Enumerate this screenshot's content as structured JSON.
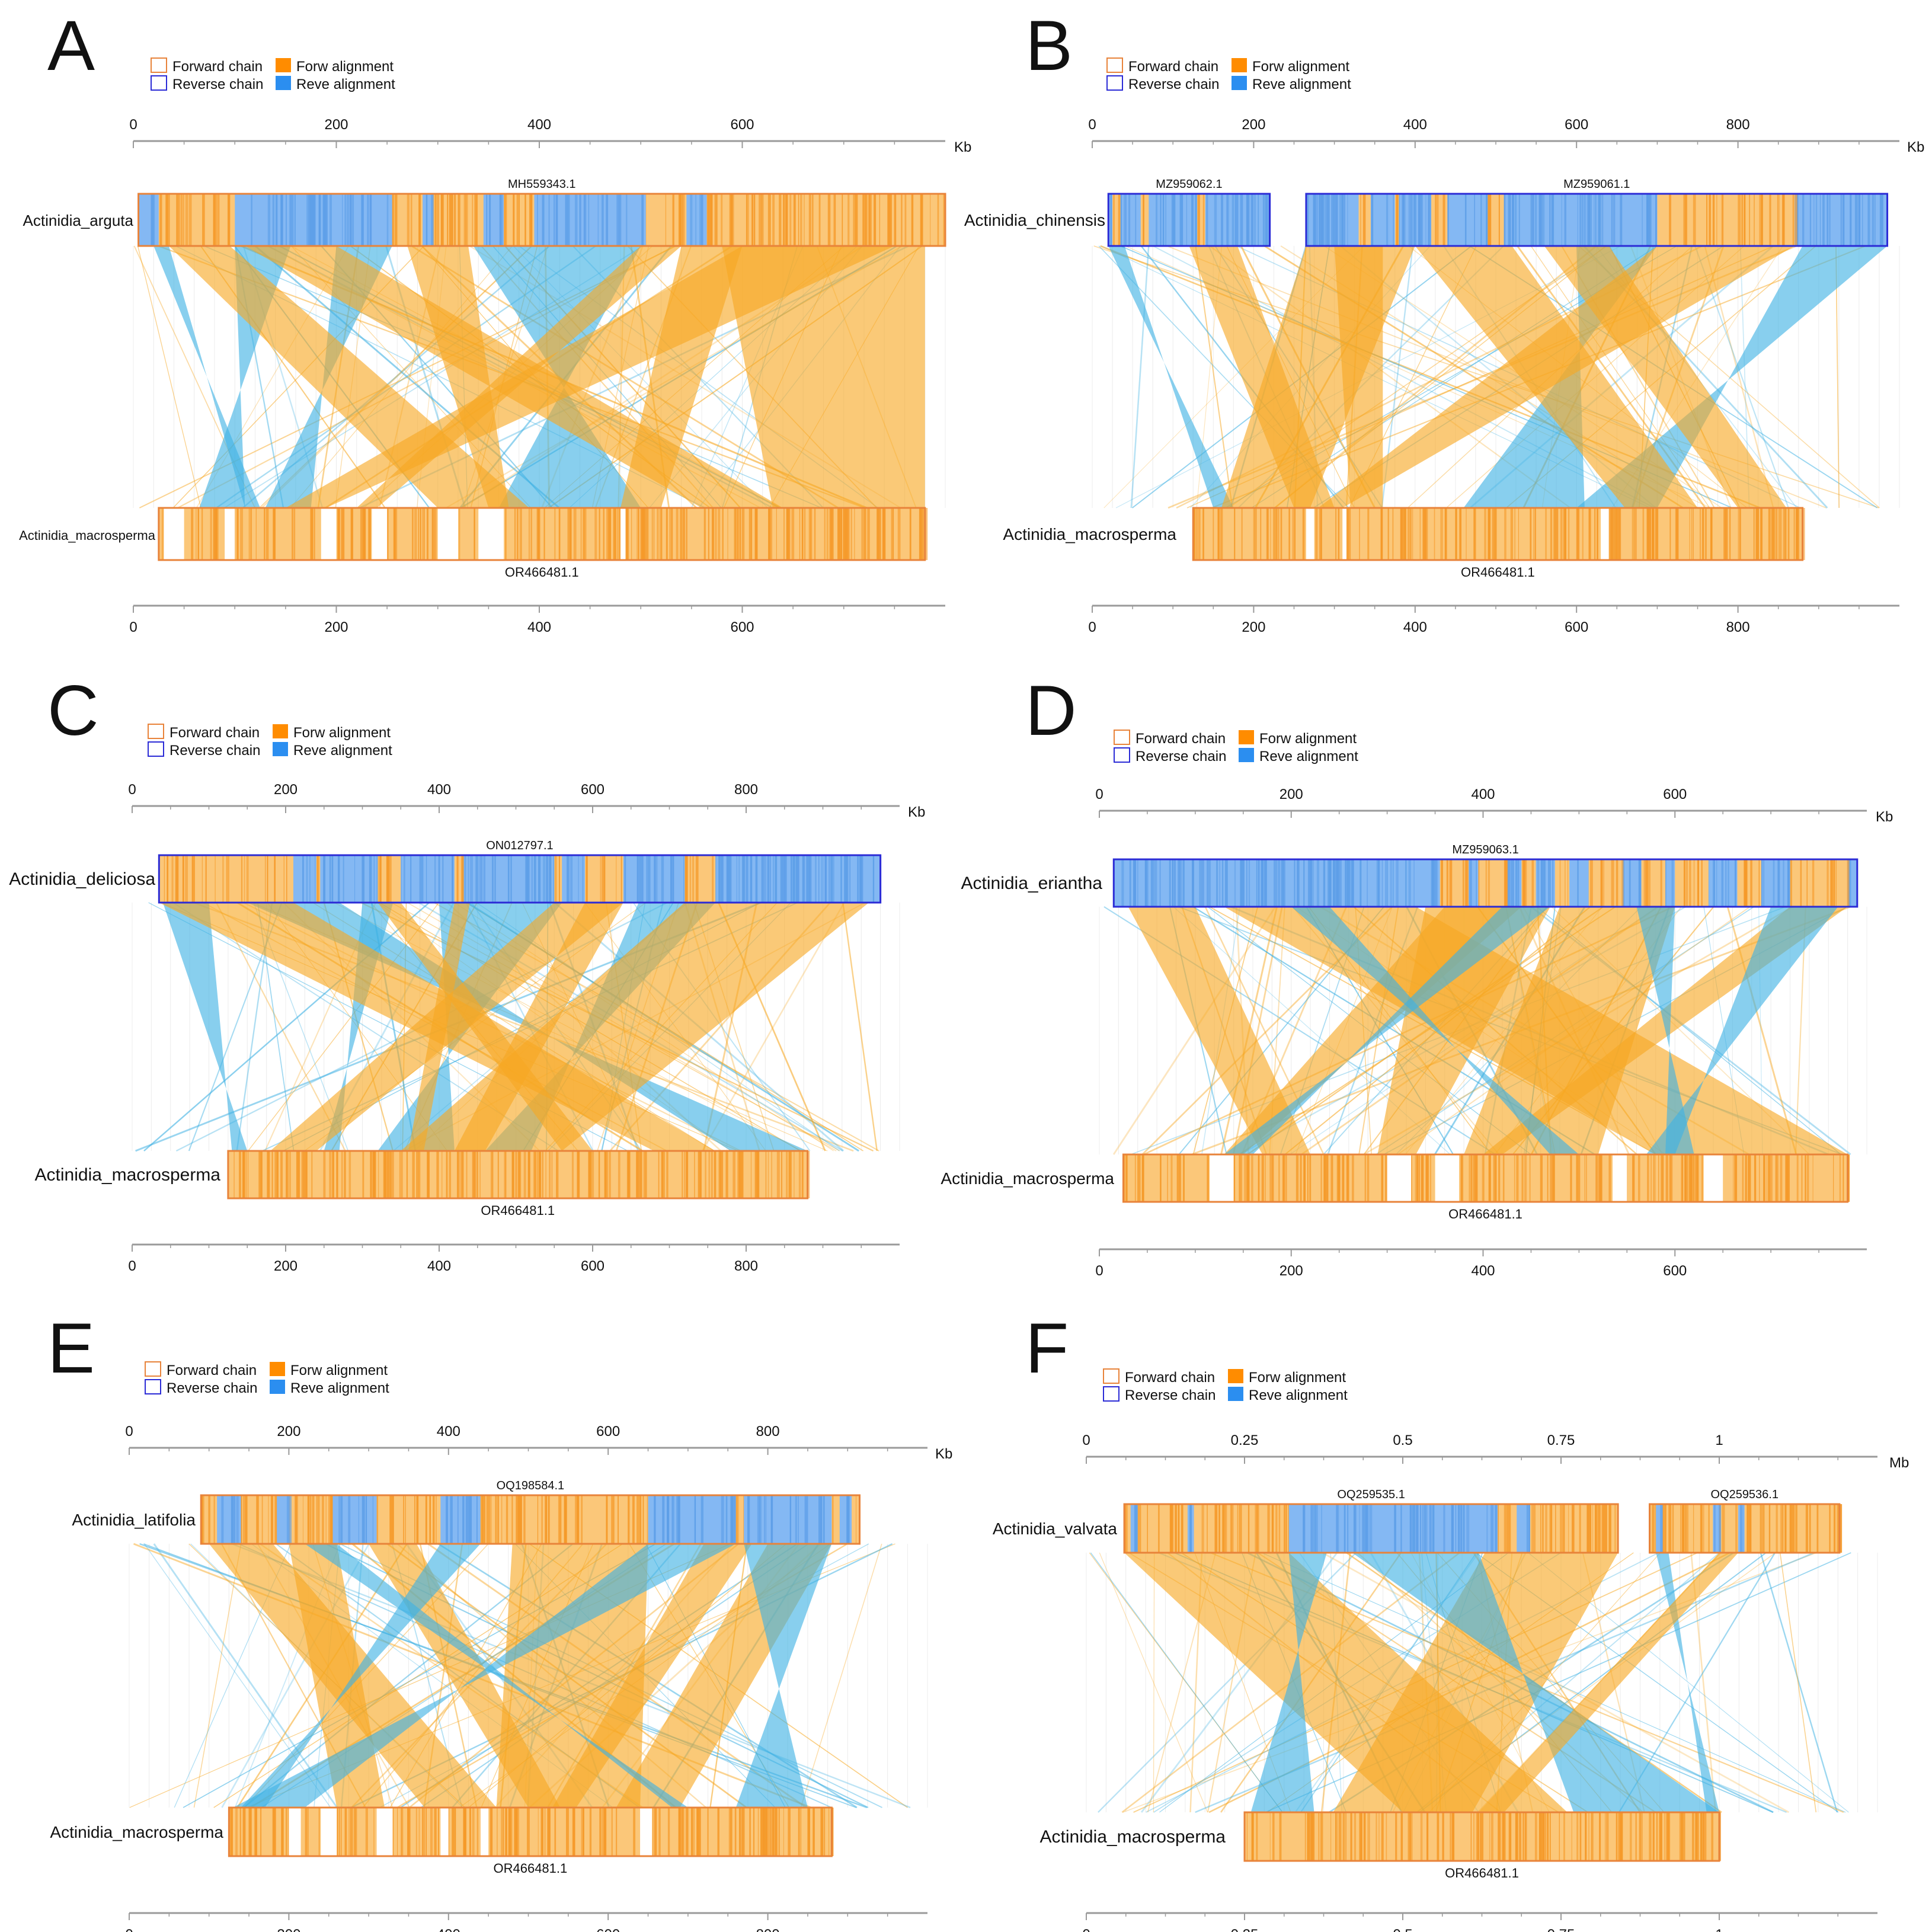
{
  "colors": {
    "forward": "#f7a823",
    "forward_light": "#fbc779",
    "reverse": "#3fb1e3",
    "reverse_fill": "#84b8f3",
    "chain_forward_border": "#e8833a",
    "chain_reverse_border": "#2b2bd6",
    "axis": "#9a9a9a",
    "text": "#111111"
  },
  "legend": {
    "forward_chain": "Forward chain",
    "reverse_chain": "Reverse chain",
    "forw_alignment": "Forw alignment",
    "reve_alignment": "Reve alignment"
  },
  "chart_data": [
    {
      "type": "synteny",
      "panel": "A",
      "unit": "Kb",
      "axis_max": 800,
      "ticks": [
        0,
        200,
        400,
        600
      ],
      "top_species": "Actinidia_arguta",
      "top_chains": [
        {
          "id": "MH559343.1",
          "start": 5,
          "end": 800,
          "strand": "forward",
          "rev_blocks": [
            [
              5,
              25
            ],
            [
              100,
              255
            ],
            [
              285,
              295
            ],
            [
              345,
              365
            ],
            [
              395,
              505
            ],
            [
              545,
              565
            ]
          ]
        }
      ],
      "bottom_species": "Actinidia_macrosperma",
      "bottom_chains": [
        {
          "id": "OR466481.1",
          "start": 25,
          "end": 780,
          "strand": "forward",
          "gaps": [
            [
              30,
              50
            ],
            [
              90,
              100
            ],
            [
              185,
              200
            ],
            [
              235,
              250
            ],
            [
              300,
              320
            ],
            [
              340,
              365
            ],
            [
              480,
              485
            ]
          ]
        }
      ],
      "bands": [
        {
          "s": "r",
          "t": [
            20,
            35
          ],
          "b": [
            110,
            125
          ]
        },
        {
          "s": "r",
          "t": [
            100,
            155
          ],
          "b": [
            65,
            110
          ]
        },
        {
          "s": "r",
          "t": [
            200,
            255
          ],
          "b": [
            130,
            175
          ]
        },
        {
          "s": "r",
          "t": [
            335,
            500
          ],
          "b": [
            360,
            500
          ]
        },
        {
          "s": "f",
          "t": [
            35,
            95
          ],
          "b": [
            300,
            390
          ]
        },
        {
          "s": "f",
          "t": [
            110,
            200
          ],
          "b": [
            560,
            640
          ]
        },
        {
          "s": "f",
          "t": [
            270,
            330
          ],
          "b": [
            350,
            370
          ]
        },
        {
          "s": "f",
          "t": [
            540,
            600
          ],
          "b": [
            480,
            520
          ]
        },
        {
          "s": "f",
          "t": [
            580,
            780
          ],
          "b": [
            630,
            780
          ]
        },
        {
          "s": "f",
          "t": [
            600,
            750
          ],
          "b": [
            150,
            190
          ]
        },
        {
          "s": "f",
          "t": [
            500,
            540
          ],
          "b": [
            220,
            240
          ]
        }
      ]
    },
    {
      "type": "synteny",
      "panel": "B",
      "unit": "Kb",
      "axis_max": 1000,
      "ticks": [
        0,
        200,
        400,
        600,
        800
      ],
      "top_species": "Actinidia_chinensis",
      "top_chains": [
        {
          "id": "MZ959062.1",
          "start": 20,
          "end": 220,
          "strand": "reverse",
          "fwd_blocks": [
            [
              25,
              35
            ],
            [
              60,
              70
            ],
            [
              130,
              140
            ]
          ]
        },
        {
          "id": "MZ959061.1",
          "start": 265,
          "end": 985,
          "strand": "reverse",
          "fwd_blocks": [
            [
              330,
              345
            ],
            [
              375,
              380
            ],
            [
              420,
              440
            ],
            [
              490,
              510
            ],
            [
              700,
              870
            ]
          ]
        }
      ],
      "bottom_species": "Actinidia_macrosperma",
      "bottom_chains": [
        {
          "id": "OR466481.1",
          "start": 125,
          "end": 880,
          "strand": "forward",
          "gaps": [
            [
              265,
              275
            ],
            [
              310,
              315
            ],
            [
              630,
              640
            ]
          ]
        }
      ],
      "bands": [
        {
          "s": "r",
          "t": [
            20,
            40
          ],
          "b": [
            150,
            175
          ]
        },
        {
          "s": "r",
          "t": [
            600,
            700
          ],
          "b": [
            460,
            610
          ]
        },
        {
          "s": "r",
          "t": [
            880,
            985
          ],
          "b": [
            600,
            700
          ]
        },
        {
          "s": "f",
          "t": [
            265,
            400
          ],
          "b": [
            160,
            270
          ]
        },
        {
          "s": "f",
          "t": [
            400,
            520
          ],
          "b": [
            660,
            750
          ]
        },
        {
          "s": "f",
          "t": [
            700,
            870
          ],
          "b": [
            280,
            310
          ]
        },
        {
          "s": "f",
          "t": [
            560,
            640
          ],
          "b": [
            800,
            860
          ]
        },
        {
          "s": "f",
          "t": [
            300,
            360
          ],
          "b": [
            320,
            360
          ]
        },
        {
          "s": "f",
          "t": [
            120,
            180
          ],
          "b": [
            250,
            300
          ]
        }
      ]
    },
    {
      "type": "synteny",
      "panel": "C",
      "unit": "Kb",
      "axis_max": 1000,
      "ticks": [
        0,
        200,
        400,
        600,
        800
      ],
      "top_species": "Actinidia_deliciosa",
      "top_chains": [
        {
          "id": "ON012797.1",
          "start": 35,
          "end": 975,
          "strand": "reverse",
          "fwd_blocks": [
            [
              35,
              210
            ],
            [
              240,
              245
            ],
            [
              320,
              350
            ],
            [
              420,
              430
            ],
            [
              550,
              560
            ],
            [
              590,
              640
            ],
            [
              720,
              760
            ]
          ]
        }
      ],
      "bottom_species": "Actinidia_macrosperma",
      "bottom_chains": [
        {
          "id": "OR466481.1",
          "start": 125,
          "end": 880,
          "strand": "forward",
          "gaps": []
        }
      ],
      "bands": [
        {
          "s": "r",
          "t": [
            40,
            100
          ],
          "b": [
            130,
            150
          ]
        },
        {
          "s": "r",
          "t": [
            150,
            270
          ],
          "b": [
            780,
            880
          ]
        },
        {
          "s": "r",
          "t": [
            300,
            340
          ],
          "b": [
            250,
            270
          ]
        },
        {
          "s": "r",
          "t": [
            400,
            560
          ],
          "b": [
            320,
            420
          ]
        },
        {
          "s": "r",
          "t": [
            660,
            760
          ],
          "b": [
            460,
            520
          ]
        },
        {
          "s": "f",
          "t": [
            35,
            210
          ],
          "b": [
            680,
            760
          ]
        },
        {
          "s": "f",
          "t": [
            720,
            960
          ],
          "b": [
            350,
            560
          ]
        },
        {
          "s": "f",
          "t": [
            320,
            350
          ],
          "b": [
            560,
            600
          ]
        },
        {
          "s": "f",
          "t": [
            420,
            440
          ],
          "b": [
            360,
            380
          ]
        },
        {
          "s": "f",
          "t": [
            550,
            640
          ],
          "b": [
            180,
            240
          ]
        },
        {
          "s": "f",
          "t": [
            590,
            640
          ],
          "b": [
            420,
            460
          ]
        }
      ]
    },
    {
      "type": "synteny",
      "panel": "D",
      "unit": "Kb",
      "axis_max": 800,
      "ticks": [
        0,
        200,
        400,
        600
      ],
      "top_species": "Actinidia_eriantha",
      "top_chains": [
        {
          "id": "MZ959063.1",
          "start": 15,
          "end": 790,
          "strand": "reverse",
          "fwd_blocks": [
            [
              355,
              385
            ],
            [
              395,
              425
            ],
            [
              440,
              455
            ],
            [
              475,
              490
            ],
            [
              510,
              545
            ],
            [
              565,
              590
            ],
            [
              600,
              635
            ],
            [
              665,
              690
            ],
            [
              720,
              780
            ]
          ]
        }
      ],
      "bottom_species": "Actinidia_macrosperma",
      "bottom_chains": [
        {
          "id": "OR466481.1",
          "start": 25,
          "end": 780,
          "strand": "forward",
          "gaps": [
            [
              115,
              140
            ],
            [
              300,
              325
            ],
            [
              350,
              375
            ],
            [
              535,
              550
            ],
            [
              630,
              650
            ]
          ]
        }
      ],
      "bands": [
        {
          "s": "f",
          "t": [
            30,
            100
          ],
          "b": [
            170,
            220
          ]
        },
        {
          "s": "f",
          "t": [
            130,
            330
          ],
          "b": [
            580,
            780
          ]
        },
        {
          "s": "f",
          "t": [
            340,
            470
          ],
          "b": [
            290,
            330
          ]
        },
        {
          "s": "f",
          "t": [
            480,
            600
          ],
          "b": [
            380,
            520
          ]
        },
        {
          "s": "f",
          "t": [
            360,
            440
          ],
          "b": [
            130,
            150
          ]
        },
        {
          "s": "f",
          "t": [
            720,
            780
          ],
          "b": [
            400,
            420
          ]
        },
        {
          "s": "r",
          "t": [
            560,
            600
          ],
          "b": [
            590,
            620
          ]
        },
        {
          "s": "r",
          "t": [
            700,
            770
          ],
          "b": [
            570,
            600
          ]
        },
        {
          "s": "r",
          "t": [
            420,
            470
          ],
          "b": [
            130,
            160
          ]
        },
        {
          "s": "r",
          "t": [
            200,
            240
          ],
          "b": [
            470,
            500
          ]
        }
      ]
    },
    {
      "type": "synteny",
      "panel": "E",
      "unit": "Kb",
      "axis_max": 1000,
      "ticks": [
        0,
        200,
        400,
        600,
        800
      ],
      "top_species": "Actinidia_latifolia",
      "top_chains": [
        {
          "id": "OQ198584.1",
          "start": 90,
          "end": 915,
          "strand": "forward",
          "rev_blocks": [
            [
              110,
              140
            ],
            [
              185,
              200
            ],
            [
              255,
              310
            ],
            [
              390,
              440
            ],
            [
              650,
              760
            ],
            [
              770,
              880
            ],
            [
              890,
              905
            ]
          ]
        }
      ],
      "bottom_species": "Actinidia_macrosperma",
      "bottom_chains": [
        {
          "id": "OR466481.1",
          "start": 125,
          "end": 880,
          "strand": "forward",
          "gaps": [
            [
              200,
              215
            ],
            [
              240,
              260
            ],
            [
              310,
              330
            ],
            [
              390,
              400
            ],
            [
              440,
              450
            ],
            [
              640,
              655
            ]
          ]
        }
      ],
      "bands": [
        {
          "s": "f",
          "t": [
            100,
            180
          ],
          "b": [
            370,
            460
          ]
        },
        {
          "s": "f",
          "t": [
            200,
            260
          ],
          "b": [
            260,
            320
          ]
        },
        {
          "s": "f",
          "t": [
            300,
            360
          ],
          "b": [
            500,
            540
          ]
        },
        {
          "s": "f",
          "t": [
            480,
            650
          ],
          "b": [
            460,
            640
          ]
        },
        {
          "s": "f",
          "t": [
            720,
            780
          ],
          "b": [
            530,
            560
          ]
        },
        {
          "s": "f",
          "t": [
            800,
            880
          ],
          "b": [
            610,
            690
          ]
        },
        {
          "s": "r",
          "t": [
            650,
            760
          ],
          "b": [
            130,
            220
          ]
        },
        {
          "s": "r",
          "t": [
            770,
            880
          ],
          "b": [
            760,
            850
          ]
        },
        {
          "s": "r",
          "t": [
            390,
            440
          ],
          "b": [
            140,
            170
          ]
        },
        {
          "s": "r",
          "t": [
            220,
            260
          ],
          "b": [
            680,
            700
          ]
        }
      ]
    },
    {
      "type": "synteny",
      "panel": "F",
      "unit": "Mb",
      "axis_max": 1.25,
      "ticks": [
        0,
        0.25,
        0.5,
        0.75,
        1
      ],
      "tick_labels": [
        "0",
        "0.25",
        "0.5",
        "0.75",
        "1"
      ],
      "top_species": "Actinidia_valvata",
      "top_chains": [
        {
          "id": "OQ259535.1",
          "start": 0.06,
          "end": 0.84,
          "strand": "forward",
          "rev_blocks": [
            [
              0.32,
              0.65
            ],
            [
              0.07,
              0.08
            ],
            [
              0.16,
              0.17
            ],
            [
              0.68,
              0.7
            ]
          ]
        },
        {
          "id": "OQ259536.1",
          "start": 0.89,
          "end": 1.19,
          "strand": "forward",
          "rev_blocks": [
            [
              0.9,
              0.91
            ],
            [
              0.99,
              1.0
            ],
            [
              1.03,
              1.04
            ]
          ]
        }
      ],
      "bottom_species": "Actinidia_macrosperma",
      "bottom_chains": [
        {
          "id": "OR466481.1",
          "start": 0.25,
          "end": 1.0,
          "strand": "forward",
          "gaps": []
        }
      ],
      "bands": [
        {
          "s": "f",
          "t": [
            0.06,
            0.32
          ],
          "b": [
            0.5,
            0.76
          ]
        },
        {
          "s": "f",
          "t": [
            0.63,
            0.84
          ],
          "b": [
            0.39,
            0.61
          ]
        },
        {
          "s": "r",
          "t": [
            0.32,
            0.38
          ],
          "b": [
            0.26,
            0.36
          ]
        },
        {
          "s": "r",
          "t": [
            0.42,
            0.62
          ],
          "b": [
            0.77,
            1.0
          ]
        },
        {
          "s": "r",
          "t": [
            0.9,
            0.92
          ],
          "b": [
            0.98,
            1.0
          ]
        },
        {
          "s": "f",
          "t": [
            1.0,
            1.03
          ],
          "b": [
            0.62,
            0.66
          ]
        }
      ]
    }
  ]
}
